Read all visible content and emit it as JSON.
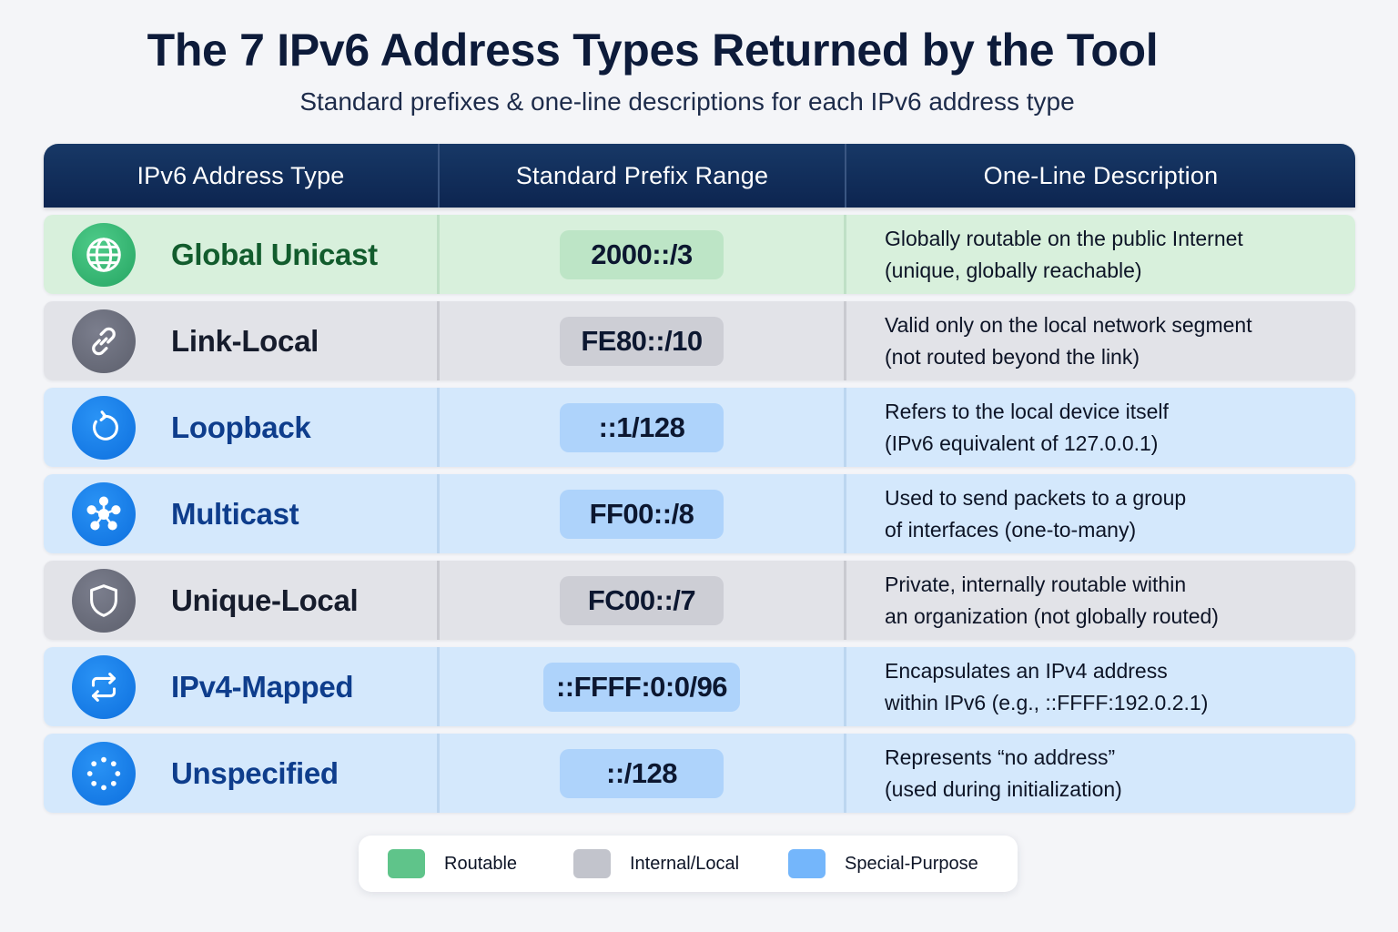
{
  "title": "The 7 IPv6 Address Types Returned by the Tool",
  "subtitle": "Standard prefixes & one-line descriptions for each IPv6 address type",
  "headers": [
    "IPv6 Address Type",
    "Standard Prefix Range",
    "One-Line Description"
  ],
  "rows": [
    {
      "name": "Global Unicast",
      "prefix": "2000::/3",
      "desc": [
        "Globally routable on the public Internet",
        "(unique, globally reachable)"
      ],
      "category": "Routable",
      "icon": "globe-icon"
    },
    {
      "name": "Link-Local",
      "prefix": "FE80::/10",
      "desc": [
        "Valid only on the local network segment",
        "(not routed beyond the link)"
      ],
      "category": "Internal/Local",
      "icon": "link-icon"
    },
    {
      "name": "Loopback",
      "prefix": "::1/128",
      "desc": [
        "Refers to the local device itself",
        "(IPv6 equivalent of 127.0.0.1)"
      ],
      "category": "Special-Purpose",
      "icon": "loop-arrow-icon"
    },
    {
      "name": "Multicast",
      "prefix": "FF00::/8",
      "desc": [
        "Used to send packets to a group",
        "of interfaces (one-to-many)"
      ],
      "category": "Special-Purpose",
      "icon": "network-hub-icon"
    },
    {
      "name": "Unique-Local",
      "prefix": "FC00::/7",
      "desc": [
        "Private, internally routable within",
        "an organization (not globally routed)"
      ],
      "category": "Internal/Local",
      "icon": "shield-icon"
    },
    {
      "name": "IPv4-Mapped",
      "prefix": "::FFFF:0:0/96",
      "desc": [
        "Encapsulates an IPv4 address",
        "within IPv6 (e.g., ::FFFF:192.0.2.1)"
      ],
      "category": "Special-Purpose",
      "icon": "swap-arrows-icon"
    },
    {
      "name": "Unspecified",
      "prefix": "::/128",
      "desc": [
        "Represents “no address”",
        "(used during initialization)"
      ],
      "category": "Special-Purpose",
      "icon": "dotted-circle-icon"
    }
  ],
  "legend": [
    {
      "label": "Routable",
      "color": "#5fc48a"
    },
    {
      "label": "Internal/Local",
      "color": "#c2c4cc"
    },
    {
      "label": "Special-Purpose",
      "color": "#74b6fb"
    }
  ]
}
